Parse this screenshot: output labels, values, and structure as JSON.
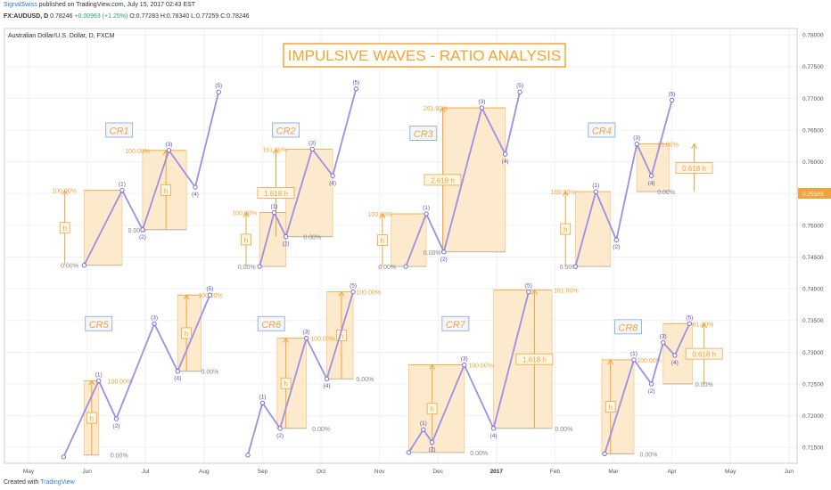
{
  "header": {
    "user": "SignalSwiss",
    "published": "published on TradingView.com, July 15, 2017 02:43 EST",
    "symbol_line": "FX:AUDUSD, D",
    "last": "0.78246",
    "change": "+0.00963 (+1.25%)",
    "ohlc": "O:0.77283 H:0.78340 L:0.77259 C:0.78246"
  },
  "footer": {
    "created_with": "Created with",
    "brand": "TradingView"
  },
  "chart_data": {
    "type": "line",
    "title": "IMPULSIVE WAVES - RATIO ANALYSIS",
    "instrument_label": "Australian Dollar/U.S. Dollar, D, FXCM",
    "ylim": [
      0.7125,
      0.781
    ],
    "y_ticks": [
      "0.78000",
      "0.77500",
      "0.77000",
      "0.76500",
      "0.76000",
      "0.75500",
      "0.75000",
      "0.74500",
      "0.74000",
      "0.73500",
      "0.73000",
      "0.72500",
      "0.72000",
      "0.71500"
    ],
    "current_price_label": "0.75503",
    "current_price": 0.75503,
    "x_ticks": [
      {
        "label": "May",
        "month": 0
      },
      {
        "label": "Jun",
        "month": 1
      },
      {
        "label": "Jul",
        "month": 2
      },
      {
        "label": "Aug",
        "month": 3
      },
      {
        "label": "Sep",
        "month": 4
      },
      {
        "label": "Oct",
        "month": 5
      },
      {
        "label": "Nov",
        "month": 6
      },
      {
        "label": "Dec",
        "month": 7
      },
      {
        "label": "2017",
        "month": 8
      },
      {
        "label": "Feb",
        "month": 9
      },
      {
        "label": "Mar",
        "month": 10
      },
      {
        "label": "Apr",
        "month": 11
      },
      {
        "label": "May",
        "month": 12
      },
      {
        "label": "Jun",
        "month": 13
      }
    ],
    "colors": {
      "wave": "#9c8fe6",
      "box": "#fde6c4",
      "ratio": "#f2a33c",
      "axis_text": "#555555",
      "grid": "#eef0f3",
      "point": "#ffffff",
      "point_stroke": "#6f63d6",
      "price_tag": "#f2a33c"
    },
    "patterns": [
      {
        "name": "CR1",
        "title_pos": [
          1.55,
          0.765
        ],
        "points": [
          [
            0.95,
            0.7437
          ],
          [
            1.6,
            0.7555
          ],
          [
            1.95,
            0.7493
          ],
          [
            2.4,
            0.7618
          ],
          [
            2.85,
            0.756
          ],
          [
            3.25,
            0.771
          ]
        ],
        "boxes": [
          {
            "x0": 0.95,
            "x1": 1.6,
            "y0": 0.7437,
            "y1": 0.7555
          },
          {
            "x0": 1.95,
            "x1": 2.7,
            "y0": 0.7493,
            "y1": 0.7618
          }
        ],
        "levels": [
          {
            "text": "100.00%",
            "x": 0.4,
            "y": 0.7555
          },
          {
            "text": "0.00%",
            "x": 0.55,
            "y": 0.7437
          },
          {
            "text": "100.00%",
            "x": 1.65,
            "y": 0.7618
          },
          {
            "text": "0.00%",
            "x": 1.7,
            "y": 0.7493
          }
        ],
        "arrows": [
          {
            "x": 0.62,
            "y0": 0.7437,
            "y1": 0.7555,
            "label": "h"
          },
          {
            "x": 2.35,
            "y0": 0.7493,
            "y1": 0.7618,
            "label": "h"
          }
        ]
      },
      {
        "name": "CR2",
        "title_pos": [
          4.4,
          0.765
        ],
        "points": [
          [
            3.95,
            0.7435
          ],
          [
            4.2,
            0.752
          ],
          [
            4.4,
            0.7482
          ],
          [
            4.85,
            0.762
          ],
          [
            5.2,
            0.7578
          ],
          [
            5.6,
            0.7715
          ]
        ],
        "boxes": [
          {
            "x0": 3.95,
            "x1": 4.4,
            "y0": 0.7435,
            "y1": 0.752
          },
          {
            "x0": 4.4,
            "x1": 5.2,
            "y0": 0.7482,
            "y1": 0.762
          }
        ],
        "levels": [
          {
            "text": "100.00%",
            "x": 3.48,
            "y": 0.752
          },
          {
            "text": "0.00%",
            "x": 3.58,
            "y": 0.7435
          },
          {
            "text": "161.80%",
            "x": 4.0,
            "y": 0.762
          },
          {
            "text": "0.00%",
            "x": 4.7,
            "y": 0.7482
          }
        ],
        "arrows": [
          {
            "x": 3.72,
            "y0": 0.7435,
            "y1": 0.752,
            "label": "h"
          },
          {
            "x": 4.23,
            "y0": 0.7482,
            "y1": 0.762,
            "label": "1.618 h"
          }
        ]
      },
      {
        "name": "CR3",
        "title_pos": [
          6.75,
          0.7645
        ],
        "points": [
          [
            6.45,
            0.7435
          ],
          [
            6.8,
            0.7518
          ],
          [
            7.1,
            0.7458
          ],
          [
            7.75,
            0.7685
          ],
          [
            8.15,
            0.7612
          ],
          [
            8.4,
            0.771
          ]
        ],
        "boxes": [
          {
            "x0": 6.2,
            "x1": 6.8,
            "y0": 0.7435,
            "y1": 0.7518
          },
          {
            "x0": 7.1,
            "x1": 8.15,
            "y0": 0.7458,
            "y1": 0.7685
          }
        ],
        "levels": [
          {
            "text": "100.00%",
            "x": 5.8,
            "y": 0.7518
          },
          {
            "text": "0.00%",
            "x": 5.98,
            "y": 0.7435
          },
          {
            "text": "261.80%",
            "x": 6.75,
            "y": 0.7685
          },
          {
            "text": "0.00%",
            "x": 6.75,
            "y": 0.7458
          }
        ],
        "arrows": [
          {
            "x": 6.05,
            "y0": 0.7435,
            "y1": 0.7518,
            "label": "h"
          },
          {
            "x": 7.08,
            "y0": 0.7458,
            "y1": 0.7685,
            "label": "2.618 h"
          }
        ]
      },
      {
        "name": "CR4",
        "title_pos": [
          9.8,
          0.765
        ],
        "points": [
          [
            9.35,
            0.7435
          ],
          [
            9.7,
            0.7553
          ],
          [
            10.05,
            0.7477
          ],
          [
            10.4,
            0.7628
          ],
          [
            10.65,
            0.7578
          ],
          [
            11.0,
            0.7697
          ]
        ],
        "boxes": [
          {
            "x0": 9.35,
            "x1": 9.95,
            "y0": 0.7435,
            "y1": 0.7553
          },
          {
            "x0": 10.4,
            "x1": 10.95,
            "y0": 0.7553,
            "y1": 0.7628
          }
        ],
        "levels": [
          {
            "text": "100.00%",
            "x": 8.93,
            "y": 0.7553
          },
          {
            "text": "0.00%",
            "x": 9.08,
            "y": 0.7435
          },
          {
            "text": "61.80%",
            "x": 10.75,
            "y": 0.7628
          },
          {
            "text": "0.00%",
            "x": 10.75,
            "y": 0.7553
          }
        ],
        "arrows": [
          {
            "x": 9.18,
            "y0": 0.7435,
            "y1": 0.7553,
            "label": "h"
          },
          {
            "x": 11.38,
            "y0": 0.7553,
            "y1": 0.7628,
            "label": "0.618 h"
          }
        ]
      },
      {
        "name": "CR5",
        "title_pos": [
          1.2,
          0.7345
        ],
        "points": [
          [
            0.6,
            0.7135
          ],
          [
            1.2,
            0.7255
          ],
          [
            1.5,
            0.7195
          ],
          [
            2.15,
            0.7345
          ],
          [
            2.55,
            0.727
          ],
          [
            3.1,
            0.739
          ]
        ],
        "boxes": [
          {
            "x0": 0.95,
            "x1": 1.2,
            "y0": 0.7138,
            "y1": 0.7255
          },
          {
            "x0": 2.55,
            "x1": 2.95,
            "y0": 0.727,
            "y1": 0.739
          }
        ],
        "levels": [
          {
            "text": "100.00%",
            "x": 1.35,
            "y": 0.7255
          },
          {
            "text": "0.00%",
            "x": 1.4,
            "y": 0.7138
          },
          {
            "text": "100.00%",
            "x": 2.9,
            "y": 0.739
          },
          {
            "text": "0.00%",
            "x": 2.95,
            "y": 0.727
          }
        ],
        "arrows": [
          {
            "x": 1.08,
            "y0": 0.7138,
            "y1": 0.7255,
            "label": "h"
          },
          {
            "x": 2.7,
            "y0": 0.727,
            "y1": 0.739,
            "label": "h"
          }
        ]
      },
      {
        "name": "CR6",
        "title_pos": [
          4.15,
          0.7345
        ],
        "points": [
          [
            3.75,
            0.7138
          ],
          [
            4.0,
            0.722
          ],
          [
            4.3,
            0.718
          ],
          [
            4.75,
            0.7322
          ],
          [
            5.1,
            0.7258
          ],
          [
            5.55,
            0.7395
          ]
        ],
        "boxes": [
          {
            "x0": 4.25,
            "x1": 4.75,
            "y0": 0.718,
            "y1": 0.7322
          },
          {
            "x0": 5.1,
            "x1": 5.55,
            "y0": 0.7258,
            "y1": 0.7395
          }
        ],
        "levels": [
          {
            "text": "100.00%",
            "x": 4.82,
            "y": 0.7322
          },
          {
            "text": "0.00%",
            "x": 4.85,
            "y": 0.718
          },
          {
            "text": "100.00%",
            "x": 5.6,
            "y": 0.7395
          },
          {
            "text": "0.00%",
            "x": 5.6,
            "y": 0.7258
          }
        ],
        "arrows": [
          {
            "x": 4.4,
            "y0": 0.718,
            "y1": 0.7322,
            "label": "h"
          },
          {
            "x": 5.35,
            "y0": 0.7258,
            "y1": 0.7395,
            "label": "h"
          }
        ]
      },
      {
        "name": "CR7",
        "title_pos": [
          7.3,
          0.7345
        ],
        "points": [
          [
            6.5,
            0.7142
          ],
          [
            6.75,
            0.7178
          ],
          [
            6.9,
            0.7158
          ],
          [
            7.45,
            0.728
          ],
          [
            7.95,
            0.718
          ],
          [
            8.55,
            0.7395
          ]
        ],
        "boxes": [
          {
            "x0": 6.5,
            "x1": 7.45,
            "y0": 0.7142,
            "y1": 0.728
          },
          {
            "x0": 7.95,
            "x1": 8.95,
            "y0": 0.718,
            "y1": 0.7398
          }
        ],
        "levels": [
          {
            "text": "100.00%",
            "x": 7.52,
            "y": 0.728
          },
          {
            "text": "0.00%",
            "x": 7.55,
            "y": 0.7142
          },
          {
            "text": "161.80%",
            "x": 8.98,
            "y": 0.7398
          },
          {
            "text": "0.00%",
            "x": 9.0,
            "y": 0.718
          }
        ],
        "arrows": [
          {
            "x": 6.9,
            "y0": 0.7142,
            "y1": 0.728,
            "label": "h"
          },
          {
            "x": 8.65,
            "y0": 0.718,
            "y1": 0.7398,
            "label": "1.618 h"
          }
        ]
      },
      {
        "name": "CR8",
        "title_pos": [
          10.25,
          0.734
        ],
        "points": [
          [
            9.85,
            0.714
          ],
          [
            10.35,
            0.7288
          ],
          [
            10.65,
            0.725
          ],
          [
            10.85,
            0.7315
          ],
          [
            11.05,
            0.7295
          ],
          [
            11.3,
            0.7345
          ]
        ],
        "boxes": [
          {
            "x0": 9.8,
            "x1": 10.35,
            "y0": 0.714,
            "y1": 0.7288
          },
          {
            "x0": 10.85,
            "x1": 11.35,
            "y0": 0.725,
            "y1": 0.7345
          }
        ],
        "levels": [
          {
            "text": "100.00%",
            "x": 10.4,
            "y": 0.7288
          },
          {
            "text": "0.00%",
            "x": 10.45,
            "y": 0.714
          },
          {
            "text": "61.80%",
            "x": 11.35,
            "y": 0.7345
          },
          {
            "text": "0.00%",
            "x": 11.4,
            "y": 0.725
          }
        ],
        "arrows": [
          {
            "x": 9.95,
            "y0": 0.714,
            "y1": 0.7288,
            "label": "h"
          },
          {
            "x": 11.55,
            "y0": 0.725,
            "y1": 0.7345,
            "label": "0.618 h"
          }
        ]
      }
    ],
    "wave_labels": [
      "",
      "(1)",
      "(2)",
      "(3)",
      "(4)",
      "(5)"
    ]
  }
}
